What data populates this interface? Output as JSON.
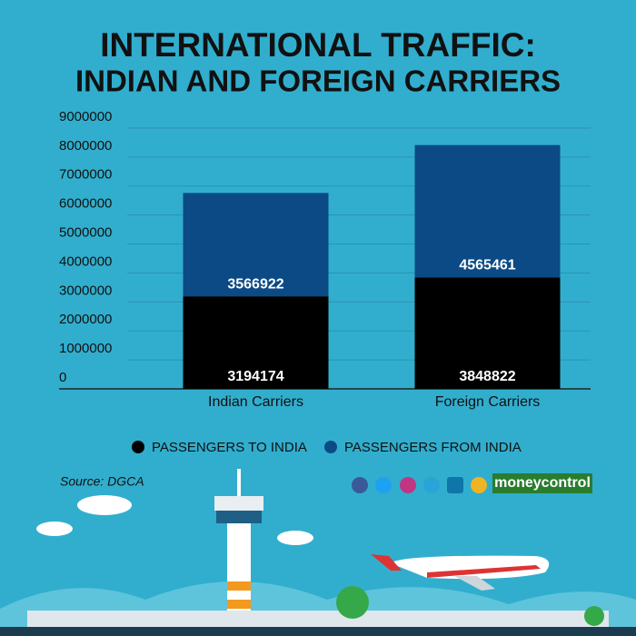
{
  "chart_data": {
    "type": "stacked_bar",
    "title": "INTERNATIONAL TRAFFIC:",
    "subtitle": "INDIAN AND FOREIGN CARRIERS",
    "categories": [
      "Indian Carriers",
      "Foreign Carriers"
    ],
    "series": [
      {
        "name": "PASSENGERS TO INDIA",
        "color": "#000000",
        "values": [
          3194174,
          3848822
        ]
      },
      {
        "name": "PASSENGERS FROM INDIA",
        "color": "#0b4a85",
        "values": [
          3566922,
          4565461
        ]
      }
    ],
    "ylim": [
      0,
      9000000
    ],
    "yticks": [
      0,
      1000000,
      2000000,
      3000000,
      4000000,
      5000000,
      6000000,
      7000000,
      8000000,
      9000000
    ],
    "grid": true,
    "source": "Source: DGCA",
    "brand": "moneycontrol"
  }
}
